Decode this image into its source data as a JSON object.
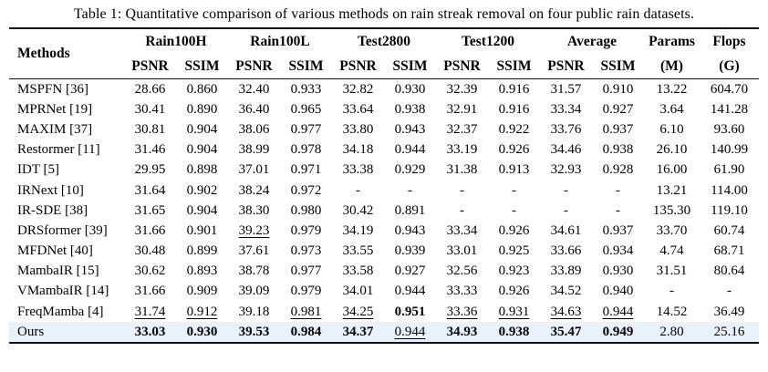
{
  "caption": "Table 1: Quantitative comparison of various methods on rain streak removal on four public rain datasets.",
  "table": {
    "methods_header": "Methods",
    "groups": [
      "Rain100H",
      "Rain100L",
      "Test2800",
      "Test1200",
      "Average"
    ],
    "sub": {
      "psnr": "PSNR",
      "ssim": "SSIM"
    },
    "params_line1": "Params",
    "params_line2": "(M)",
    "flops_line1": "Flops",
    "flops_line2": "(G)",
    "highlight_color": "#e9f2fb",
    "rows": [
      {
        "method": "MSPFN [36]",
        "values": [
          "28.66",
          "0.860",
          "32.40",
          "0.933",
          "32.82",
          "0.930",
          "32.39",
          "0.916",
          "31.57",
          "0.910",
          "13.22",
          "604.70"
        ],
        "styles": [
          "",
          "",
          "",
          "",
          "",
          "",
          "",
          "",
          "",
          "",
          "",
          ""
        ],
        "highlight": false
      },
      {
        "method": "MPRNet [19]",
        "values": [
          "30.41",
          "0.890",
          "36.40",
          "0.965",
          "33.64",
          "0.938",
          "32.91",
          "0.916",
          "33.34",
          "0.927",
          "3.64",
          "141.28"
        ],
        "styles": [
          "",
          "",
          "",
          "",
          "",
          "",
          "",
          "",
          "",
          "",
          "",
          ""
        ],
        "highlight": false
      },
      {
        "method": "MAXIM [37]",
        "values": [
          "30.81",
          "0.904",
          "38.06",
          "0.977",
          "33.80",
          "0.943",
          "32.37",
          "0.922",
          "33.76",
          "0.937",
          "6.10",
          "93.60"
        ],
        "styles": [
          "",
          "",
          "",
          "",
          "",
          "",
          "",
          "",
          "",
          "",
          "",
          ""
        ],
        "highlight": false
      },
      {
        "method": "Restormer [11]",
        "values": [
          "31.46",
          "0.904",
          "38.99",
          "0.978",
          "34.18",
          "0.944",
          "33.19",
          "0.926",
          "34.46",
          "0.938",
          "26.10",
          "140.99"
        ],
        "styles": [
          "",
          "",
          "",
          "",
          "",
          "",
          "",
          "",
          "",
          "",
          "",
          ""
        ],
        "highlight": false
      },
      {
        "method": "IDT [5]",
        "values": [
          "29.95",
          "0.898",
          "37.01",
          "0.971",
          "33.38",
          "0.929",
          "31.38",
          "0.913",
          "32.93",
          "0.928",
          "16.00",
          "61.90"
        ],
        "styles": [
          "",
          "",
          "",
          "",
          "",
          "",
          "",
          "",
          "",
          "",
          "",
          ""
        ],
        "highlight": false
      },
      {
        "method": "IRNext [10]",
        "values": [
          "31.64",
          "0.902",
          "38.24",
          "0.972",
          "-",
          "-",
          "-",
          "-",
          "-",
          "-",
          "13.21",
          "114.00"
        ],
        "styles": [
          "",
          "",
          "",
          "",
          "",
          "",
          "",
          "",
          "",
          "",
          "",
          ""
        ],
        "highlight": false
      },
      {
        "method": "IR-SDE [38]",
        "values": [
          "31.65",
          "0.904",
          "38.30",
          "0.980",
          "30.42",
          "0.891",
          "-",
          "-",
          "-",
          "-",
          "135.30",
          "119.10"
        ],
        "styles": [
          "",
          "",
          "",
          "",
          "",
          "",
          "",
          "",
          "",
          "",
          "",
          ""
        ],
        "highlight": false
      },
      {
        "method": "DRSformer [39]",
        "values": [
          "31.66",
          "0.901",
          "39.23",
          "0.979",
          "34.19",
          "0.943",
          "33.34",
          "0.926",
          "34.61",
          "0.937",
          "33.70",
          "60.74"
        ],
        "styles": [
          "",
          "",
          "u",
          "",
          "",
          "",
          "",
          "",
          "",
          "",
          "",
          ""
        ],
        "highlight": false
      },
      {
        "method": "MFDNet [40]",
        "values": [
          "30.48",
          "0.899",
          "37.61",
          "0.973",
          "33.55",
          "0.939",
          "33.01",
          "0.925",
          "33.66",
          "0.934",
          "4.74",
          "68.71"
        ],
        "styles": [
          "",
          "",
          "",
          "",
          "",
          "",
          "",
          "",
          "",
          "",
          "",
          ""
        ],
        "highlight": false
      },
      {
        "method": "MambaIR [15]",
        "values": [
          "30.62",
          "0.893",
          "38.78",
          "0.977",
          "33.58",
          "0.927",
          "32.56",
          "0.923",
          "33.89",
          "0.930",
          "31.51",
          "80.64"
        ],
        "styles": [
          "",
          "",
          "",
          "",
          "",
          "",
          "",
          "",
          "",
          "",
          "",
          ""
        ],
        "highlight": false
      },
      {
        "method": "VMambaIR [14]",
        "values": [
          "31.66",
          "0.909",
          "39.09",
          "0.979",
          "34.01",
          "0.944",
          "33.33",
          "0.926",
          "34.52",
          "0.940",
          "-",
          "-"
        ],
        "styles": [
          "",
          "",
          "",
          "",
          "",
          "",
          "",
          "",
          "",
          "",
          "",
          ""
        ],
        "highlight": false
      },
      {
        "method": "FreqMamba [4]",
        "values": [
          "31.74",
          "0.912",
          "39.18",
          "0.981",
          "34.25",
          "0.951",
          "33.36",
          "0.931",
          "34.63",
          "0.944",
          "14.52",
          "36.49"
        ],
        "styles": [
          "u",
          "u",
          "",
          "u",
          "u",
          "b",
          "u",
          "u",
          "u",
          "u",
          "",
          ""
        ],
        "highlight": false
      },
      {
        "method": "Ours",
        "values": [
          "33.03",
          "0.930",
          "39.53",
          "0.984",
          "34.37",
          "0.944",
          "34.93",
          "0.938",
          "35.47",
          "0.949",
          "2.80",
          "25.16"
        ],
        "styles": [
          "b",
          "b",
          "b",
          "b",
          "b",
          "u",
          "b",
          "b",
          "b",
          "b",
          "",
          ""
        ],
        "highlight": true
      }
    ]
  }
}
